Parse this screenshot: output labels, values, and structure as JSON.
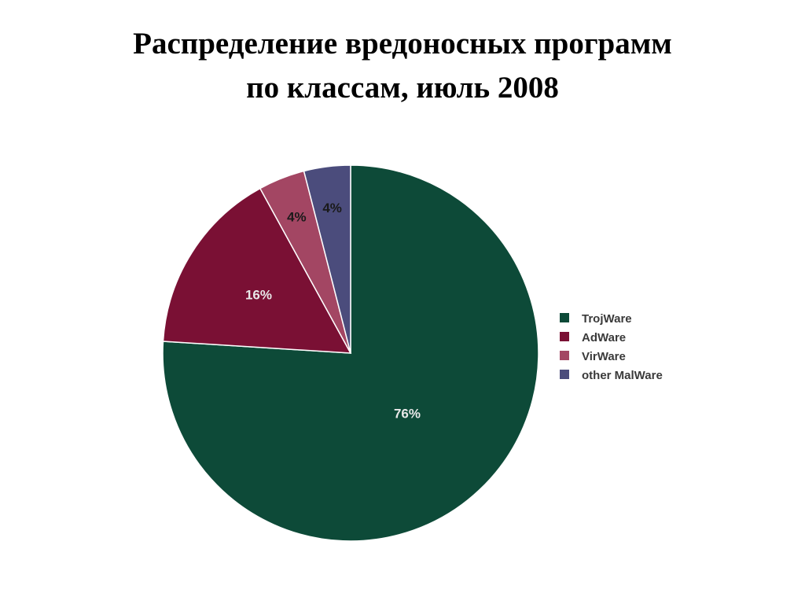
{
  "chart_data": {
    "type": "pie",
    "title_lines": [
      "Распределение вредоносных программ",
      "по классам, июль 2008"
    ],
    "series": [
      {
        "name": "TrojWare",
        "value": 76,
        "label": "76%",
        "color": "#0d4a38",
        "label_color": "#e8e8e8"
      },
      {
        "name": "AdWare",
        "value": 16,
        "label": "16%",
        "color": "#7a1034",
        "label_color": "#e8e8e8"
      },
      {
        "name": "VirWare",
        "value": 4,
        "label": "4%",
        "color": "#a34663",
        "label_color": "#1a1a1a"
      },
      {
        "name": "other MalWare",
        "value": 4,
        "label": "4%",
        "color": "#4b4c7c",
        "label_color": "#1a1a1a"
      }
    ],
    "start": "top",
    "direction": "clockwise",
    "legend": "right"
  }
}
